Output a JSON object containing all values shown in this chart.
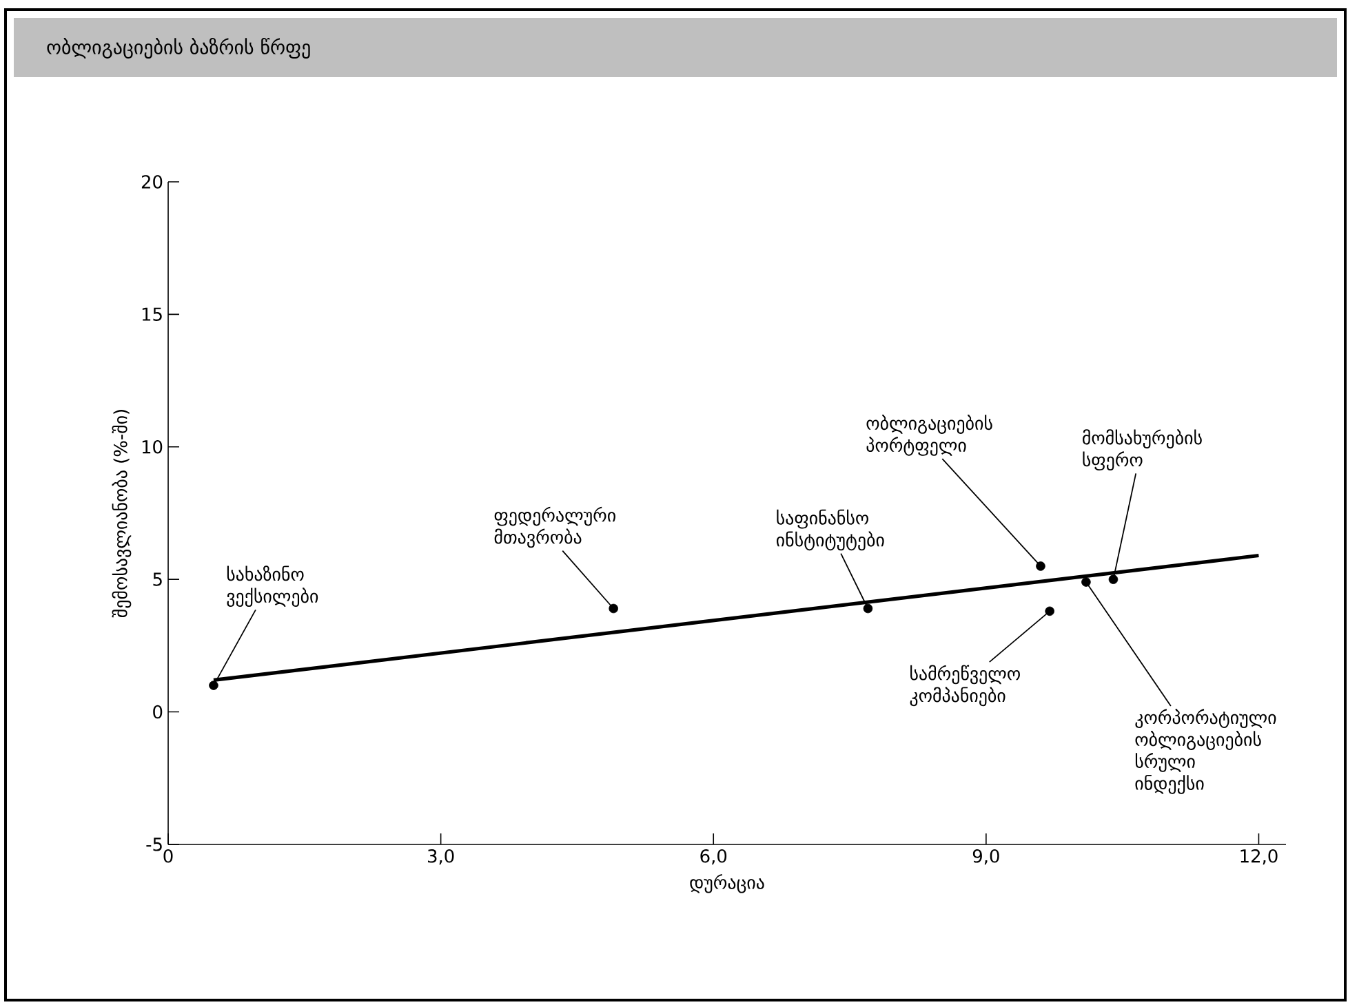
{
  "chart_data": {
    "type": "scatter",
    "title": "ობლიგაციების ბაზრის წრფე",
    "xlabel": "დურაცია",
    "ylabel": "შემოსავლიანობა (%-ში)",
    "xlim": [
      0,
      12.3
    ],
    "ylim": [
      -5,
      20
    ],
    "xticks": [
      0,
      {
        "value": 3,
        "label": "3,0"
      },
      {
        "value": 6,
        "label": "6,0"
      },
      {
        "value": 9,
        "label": "9,0"
      },
      {
        "value": 12,
        "label": "12,0"
      }
    ],
    "yticks": [
      -5,
      0,
      5,
      10,
      15,
      20
    ],
    "series": [
      {
        "color": "#000000",
        "marker": "circle",
        "x": [
          0.5,
          4.9,
          7.7,
          9.6,
          10.4,
          9.7,
          10.1
        ],
        "values": [
          1.0,
          3.9,
          3.9,
          5.5,
          5.0,
          3.8,
          4.9
        ]
      },
      {
        "type": "line",
        "color": "#000000",
        "line_style": "solid",
        "marker": "none",
        "x": [
          0.5,
          12.0
        ],
        "values": [
          1.2,
          5.9
        ]
      }
    ],
    "annotations": [
      {
        "text": "სახაზინო ვექსილები",
        "x": 0.5,
        "y": 1.0
      },
      {
        "text": "ფედერალური მთავრობა",
        "x": 4.9,
        "y": 3.9
      },
      {
        "text": "საფინანსო ინსტიტუტები",
        "x": 7.7,
        "y": 3.9
      },
      {
        "text": "ობლიგაციების პორტფელი",
        "x": 9.6,
        "y": 5.5
      },
      {
        "text": "მომსახურების სფერო",
        "x": 10.4,
        "y": 5.0
      },
      {
        "text": "სამრეწველო კომპანიები",
        "x": 9.7,
        "y": 3.8
      },
      {
        "text": "კორპორატიული ობლიგაციების სრული ინდექსი",
        "x": 10.1,
        "y": 4.9
      }
    ]
  }
}
